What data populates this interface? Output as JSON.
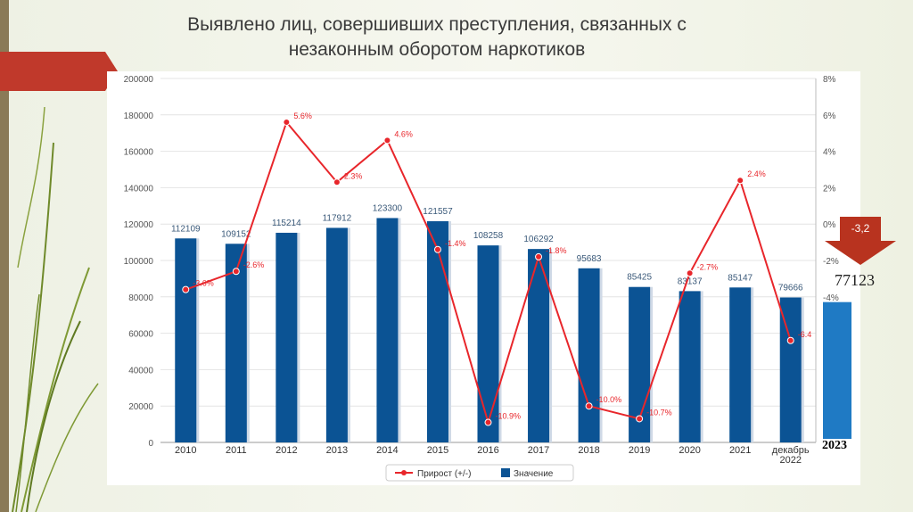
{
  "title": {
    "line1": "Выявлено лиц, совершивших преступления, связанных с",
    "line2": "незаконным оборотом наркотиков"
  },
  "colors": {
    "bar": "#0b5394",
    "bar_2023": "#1f7ac4",
    "line": "#e8262b",
    "accent": "#c0392b"
  },
  "chart_data": {
    "type": "bar",
    "categories": [
      "2010",
      "2011",
      "2012",
      "2013",
      "2014",
      "2015",
      "2016",
      "2017",
      "2018",
      "2019",
      "2020",
      "2021",
      "декабрь 2022"
    ],
    "series": [
      {
        "name": "Значение",
        "values": [
          112109,
          109152,
          115214,
          117912,
          123300,
          121557,
          108258,
          106292,
          95683,
          85425,
          83137,
          85147,
          79666
        ],
        "labels": [
          "112109",
          "109152",
          "115214",
          "117912",
          "123300",
          "121557",
          "108258",
          "106292",
          "95683",
          "85425",
          "83137",
          "85147",
          "79666"
        ]
      },
      {
        "name": "Прирост (+/-)",
        "type": "line",
        "values": [
          -3.6,
          -2.6,
          5.6,
          2.3,
          4.6,
          -1.4,
          -10.9,
          -1.8,
          -10.0,
          -10.7,
          -2.7,
          2.4,
          -6.4
        ],
        "labels": [
          "-3.6%",
          "-2.6%",
          "5.6%",
          "2.3%",
          "4.6%",
          "-1.4%",
          "-10.9%",
          "-1.8%",
          "-10.0%",
          "-10.7%",
          "-2.7%",
          "2.4%",
          "-6.4"
        ]
      }
    ],
    "y_left": {
      "ylim": [
        0,
        200000
      ],
      "ticks": [
        "200000",
        "180000",
        "160000",
        "140000",
        "120000",
        "100000",
        "80000",
        "60000",
        "40000",
        "20000",
        "0"
      ]
    },
    "y_right": {
      "ylim": [
        -12,
        8
      ],
      "ticks": [
        "8%",
        "6%",
        "4%",
        "2%",
        "0%",
        "-2%",
        "-4%"
      ]
    },
    "legend": {
      "position": "bottom",
      "items": [
        "Прирост (+/-)",
        "Значение"
      ]
    },
    "extra_bar": {
      "label": "2023",
      "value": 77123,
      "value_label": "77123",
      "change_label": "-3,2"
    },
    "grid": true
  }
}
